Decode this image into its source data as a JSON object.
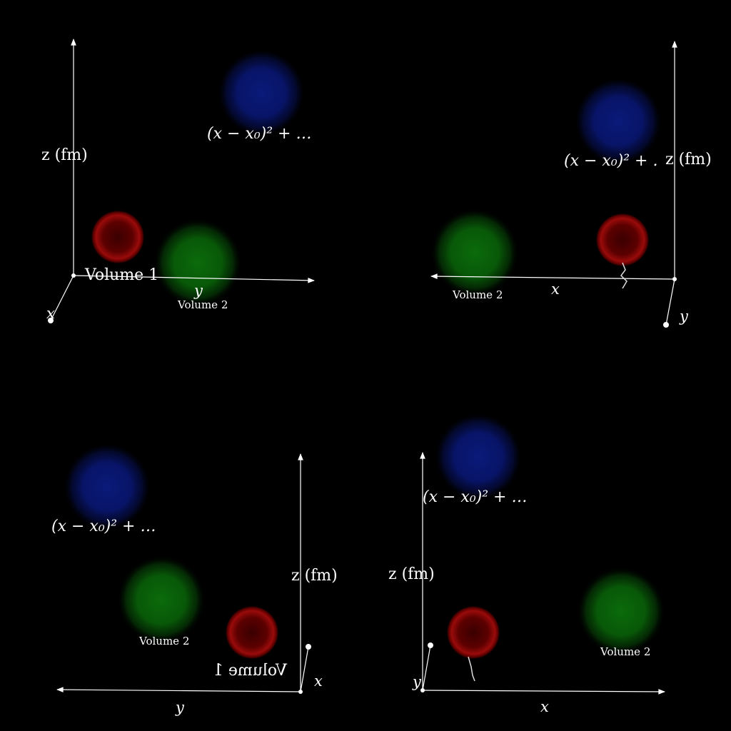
{
  "colors": {
    "background": "#000000",
    "axis": "#ffffff",
    "volume_1": "#8b0000",
    "volume_2": "#0b6b0b",
    "volume_3": "#0a1a7a"
  },
  "labels": {
    "z_axis": "z (fm)",
    "x_axis": "x",
    "y_axis": "y",
    "volume_1": "Volume 1",
    "volume_2": "Volume 2",
    "formula": "(x − x₀)² + …",
    "formula_truncated": "(x − x₀)² + ."
  },
  "panels": [
    {
      "id": "panel-top-left",
      "view": "perspective-1"
    },
    {
      "id": "panel-top-right",
      "view": "perspective-2"
    },
    {
      "id": "panel-bottom-left",
      "view": "perspective-3"
    },
    {
      "id": "panel-bottom-right",
      "view": "perspective-4"
    }
  ]
}
